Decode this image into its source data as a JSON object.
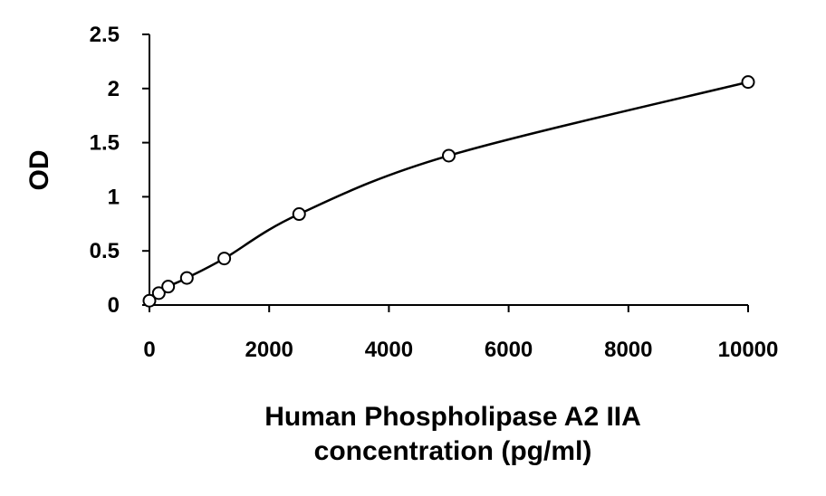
{
  "chart_data": {
    "type": "scatter",
    "title": "",
    "xlabel": [
      "Human Phospholipase A2 IIA",
      "concentration (pg/ml)"
    ],
    "ylabel": "OD",
    "xlim": [
      0,
      10000
    ],
    "ylim": [
      0,
      2.5
    ],
    "x_ticks": [
      "0",
      "2000",
      "4000",
      "6000",
      "8000",
      "10000"
    ],
    "y_ticks": [
      "0",
      "0.5",
      "1",
      "1.5",
      "2",
      "2.5"
    ],
    "grid": false,
    "legend": "none",
    "series": [
      {
        "marker": "open-circle",
        "fit_line": "smooth-curve",
        "points": [
          {
            "x": 0,
            "y": 0.04
          },
          {
            "x": 156,
            "y": 0.11
          },
          {
            "x": 313,
            "y": 0.17
          },
          {
            "x": 625,
            "y": 0.25
          },
          {
            "x": 1250,
            "y": 0.43
          },
          {
            "x": 2500,
            "y": 0.84
          },
          {
            "x": 5000,
            "y": 1.38
          },
          {
            "x": 10000,
            "y": 2.06
          }
        ]
      }
    ],
    "colors": {
      "line": "#000000",
      "marker_stroke": "#000000",
      "marker_fill": "#ffffff"
    }
  }
}
